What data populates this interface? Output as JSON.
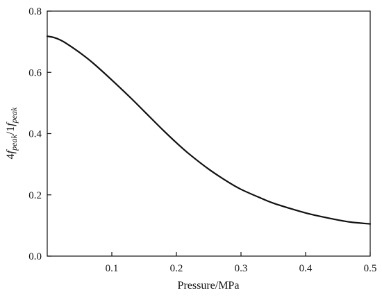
{
  "chart_data": {
    "type": "line",
    "title": "",
    "xlabel": "Pressure/MPa",
    "ylabel": {
      "part1": "4",
      "part1_italic": "f",
      "part1_sub": "peak",
      "sep": "/1",
      "part2_italic": "f",
      "part2_sub": "peak"
    },
    "xlim": [
      0.0,
      0.5
    ],
    "ylim": [
      0.0,
      0.8
    ],
    "xticks": [
      0.1,
      0.2,
      0.3,
      0.4,
      0.5
    ],
    "xtick_labels": [
      "0.1",
      "0.2",
      "0.3",
      "0.4",
      "0.5"
    ],
    "yticks": [
      0.0,
      0.2,
      0.4,
      0.6,
      0.8
    ],
    "ytick_labels": [
      "0.0",
      "0.2",
      "0.4",
      "0.6",
      "0.8"
    ],
    "grid": false,
    "legend": "none",
    "series": [
      {
        "x": [
          0.0,
          0.01,
          0.02,
          0.03,
          0.05,
          0.07,
          0.1,
          0.13,
          0.15,
          0.18,
          0.2,
          0.22,
          0.25,
          0.28,
          0.3,
          0.33,
          0.35,
          0.38,
          0.4,
          0.42,
          0.45,
          0.47,
          0.5
        ],
        "y": [
          0.718,
          0.714,
          0.706,
          0.694,
          0.665,
          0.632,
          0.575,
          0.515,
          0.473,
          0.41,
          0.37,
          0.333,
          0.284,
          0.242,
          0.218,
          0.19,
          0.173,
          0.153,
          0.141,
          0.131,
          0.118,
          0.111,
          0.105
        ]
      }
    ]
  }
}
